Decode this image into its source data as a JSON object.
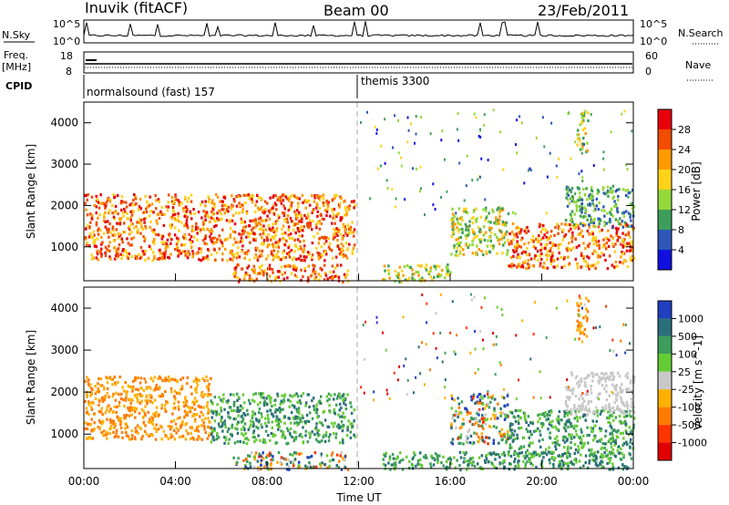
{
  "header": {
    "station": "Inuvik (fitACF)",
    "beam": "Beam 00",
    "date": "23/Feb/2011"
  },
  "top_panels": {
    "nsky_label": "N.Sky",
    "nsearch_label": "N.Search",
    "nsky_ticks": [
      "10^5",
      "10^0"
    ],
    "nsearch_ticks": [
      "10^5",
      "10^0"
    ],
    "freq_label_1": "Freq.",
    "freq_label_2": "[MHz]",
    "freq_ticks": [
      "18",
      "8"
    ],
    "nave_label": "Nave",
    "nave_ticks": [
      "60",
      "0"
    ],
    "cpid_label": "CPID",
    "cpid_segments": [
      {
        "name": "normalsound (fast) 157",
        "start_h": 0,
        "end_h": 12
      },
      {
        "name": "themis 3300",
        "start_h": 12,
        "end_h": 24
      }
    ]
  },
  "chart_data": [
    {
      "type": "heatmap",
      "quantity": "Power",
      "xlabel": "Time UT",
      "ylabel": "Slant Range [km]",
      "xlim": [
        0,
        24
      ],
      "ylim": [
        180,
        4500
      ],
      "x_ticks": [
        "00:00",
        "04:00",
        "08:00",
        "12:00",
        "16:00",
        "20:00",
        "00:00"
      ],
      "y_ticks": [
        1000,
        2000,
        3000,
        4000
      ],
      "colorbar": {
        "label": "Power [dB]",
        "ticks": [
          "28",
          "24",
          "20",
          "16",
          "12",
          "8",
          "4"
        ],
        "colors": [
          "#e8000b",
          "#f24d00",
          "#ff9a00",
          "#ffd21a",
          "#95d83a",
          "#3c9e5a",
          "#2e57b8",
          "#1010e0"
        ]
      },
      "echo_regions": [
        {
          "t0": 0.0,
          "t1": 11.8,
          "r0": 700,
          "r1": 2300,
          "level": "high"
        },
        {
          "t0": 6.5,
          "t1": 11.5,
          "r0": 180,
          "r1": 600,
          "level": "high"
        },
        {
          "t0": 13.0,
          "t1": 16.0,
          "r0": 180,
          "r1": 600,
          "level": "medium"
        },
        {
          "t0": 16.0,
          "t1": 18.5,
          "r0": 800,
          "r1": 2000,
          "level": "medium"
        },
        {
          "t0": 18.5,
          "t1": 24.0,
          "r0": 500,
          "r1": 1600,
          "level": "high"
        },
        {
          "t0": 21.0,
          "t1": 24.0,
          "r0": 1500,
          "r1": 2500,
          "level": "low"
        },
        {
          "t0": 21.5,
          "t1": 22.0,
          "r0": 3300,
          "r1": 4300,
          "level": "medium"
        }
      ]
    },
    {
      "type": "heatmap",
      "quantity": "Velocity",
      "xlabel": "Time UT",
      "ylabel": "Slant Range [km]",
      "xlim": [
        0,
        24
      ],
      "ylim": [
        180,
        4500
      ],
      "x_ticks": [
        "00:00",
        "04:00",
        "08:00",
        "12:00",
        "16:00",
        "20:00",
        "00:00"
      ],
      "y_ticks": [
        1000,
        2000,
        3000,
        4000
      ],
      "colorbar": {
        "label": "Velocity [m s^-1]",
        "ticks": [
          "1000",
          "500",
          "100",
          "25",
          "-25",
          "-100",
          "-500",
          "-1000"
        ],
        "colors": [
          "#2040c0",
          "#2a6f7a",
          "#3c9e5a",
          "#66cc33",
          "#c8c8c8",
          "#ffb000",
          "#ff7a00",
          "#ff3300",
          "#e00000"
        ]
      },
      "echo_regions": [
        {
          "t0": 0.0,
          "t1": 5.5,
          "r0": 900,
          "r1": 2400,
          "level": "negative"
        },
        {
          "t0": 5.5,
          "t1": 11.8,
          "r0": 800,
          "r1": 2000,
          "level": "positive"
        },
        {
          "t0": 6.5,
          "t1": 11.5,
          "r0": 180,
          "r1": 600,
          "level": "mixed"
        },
        {
          "t0": 13.0,
          "t1": 24.0,
          "r0": 180,
          "r1": 600,
          "level": "positive"
        },
        {
          "t0": 16.0,
          "t1": 18.5,
          "r0": 800,
          "r1": 2000,
          "level": "mixed"
        },
        {
          "t0": 18.5,
          "t1": 24.0,
          "r0": 500,
          "r1": 1600,
          "level": "positive"
        },
        {
          "t0": 21.0,
          "t1": 24.0,
          "r0": 1500,
          "r1": 2500,
          "level": "near-zero"
        },
        {
          "t0": 21.5,
          "t1": 22.0,
          "r0": 3300,
          "r1": 4300,
          "level": "negative"
        }
      ]
    }
  ]
}
